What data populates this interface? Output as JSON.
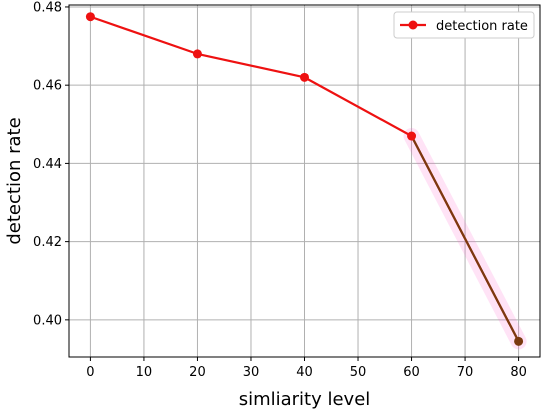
{
  "chart_data": {
    "type": "line",
    "xlabel": "simliarity level",
    "ylabel": "detection rate",
    "x": [
      0,
      20,
      40,
      60,
      80
    ],
    "series": [
      {
        "name": "detection rate",
        "values": [
          0.4775,
          0.468,
          0.462,
          0.447,
          0.3945
        ],
        "color": "#ee1111"
      }
    ],
    "xlim": [
      -4,
      84
    ],
    "ylim": [
      0.3905,
      0.4805
    ],
    "xticks": [
      0,
      10,
      20,
      30,
      40,
      50,
      60,
      70,
      80
    ],
    "xtick_labels": [
      "0",
      "10",
      "20",
      "30",
      "40",
      "50",
      "60",
      "70",
      "80"
    ],
    "yticks": [
      0.4,
      0.42,
      0.44,
      0.46,
      0.48
    ],
    "ytick_labels": [
      "0.40",
      "0.42",
      "0.44",
      "0.46",
      "0.48"
    ],
    "grid": true,
    "legend_position": "top-right",
    "highlight_segment": {
      "from_x": 60,
      "to_x": 80,
      "color": "#7a3a10",
      "glow_color": "#ff66cc"
    }
  }
}
